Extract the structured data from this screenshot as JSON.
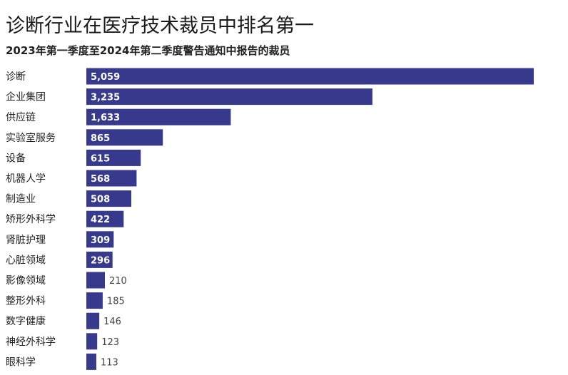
{
  "chart_data": {
    "type": "bar",
    "orientation": "horizontal",
    "title": "诊断行业在医疗技术裁员中排名第一",
    "subtitle": "2023年第一季度至2024年第二季度警告通知中报告的裁员",
    "categories": [
      "诊断",
      "企业集团",
      "供应链",
      "实验室服务",
      "设备",
      "机器人学",
      "制造业",
      "矫形外科学",
      "肾脏护理",
      "心脏领域",
      "影像领域",
      "整形外科",
      "数字健康",
      "神经外科学",
      "眼科学"
    ],
    "values": [
      5059,
      3235,
      1633,
      865,
      615,
      568,
      508,
      422,
      309,
      296,
      210,
      185,
      146,
      123,
      113
    ],
    "value_labels": [
      "5,059",
      "3,235",
      "1,633",
      "865",
      "615",
      "568",
      "508",
      "422",
      "309",
      "296",
      "210",
      "185",
      "146",
      "123",
      "113"
    ],
    "xlabel": "",
    "ylabel": "",
    "xlim": [
      0,
      5059
    ],
    "grid": false,
    "bar_color": "#373A8C"
  }
}
